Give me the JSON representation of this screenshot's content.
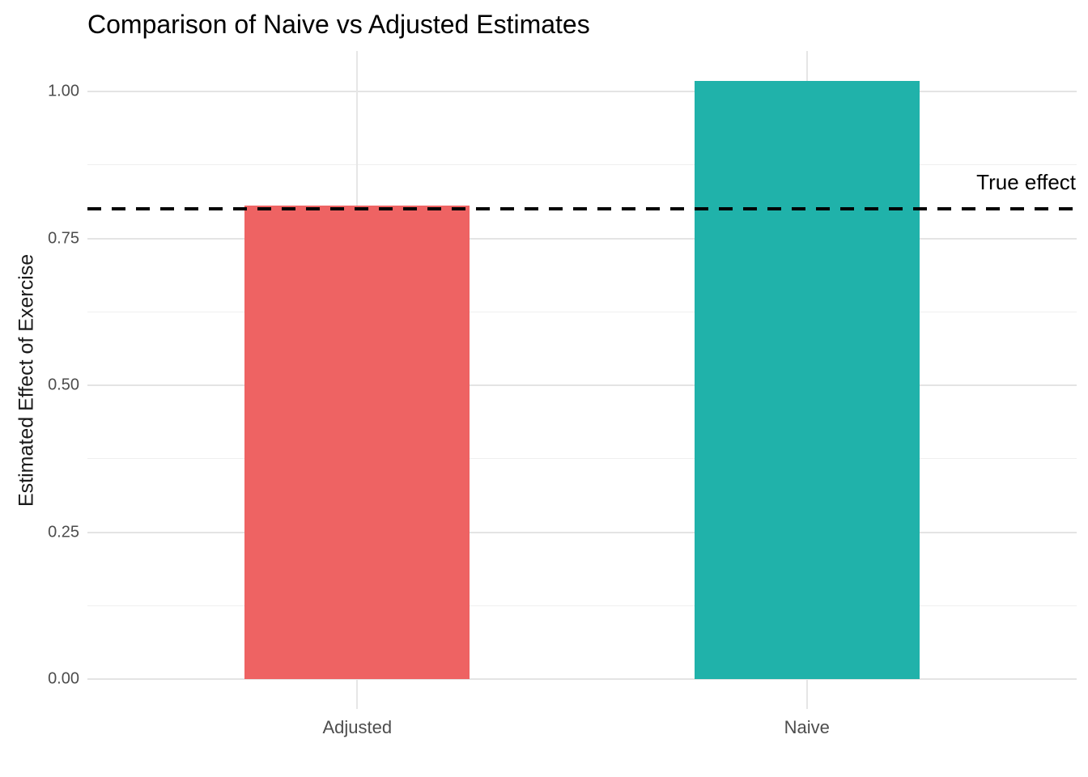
{
  "chart_data": {
    "type": "bar",
    "title": "Comparison of Naive vs Adjusted Estimates",
    "xlabel": "",
    "ylabel": "Estimated Effect of Exercise",
    "categories": [
      "Adjusted",
      "Naive"
    ],
    "values": [
      0.806,
      1.018
    ],
    "bar_colors": [
      "#EE6363",
      "#20B2AA"
    ],
    "ylim": [
      0,
      1.02
    ],
    "y_ticks": [
      {
        "value": 0.0,
        "label": "0.00"
      },
      {
        "value": 0.25,
        "label": "0.25"
      },
      {
        "value": 0.5,
        "label": "0.50"
      },
      {
        "value": 0.75,
        "label": "0.75"
      },
      {
        "value": 1.0,
        "label": "1.00"
      }
    ],
    "y_minor_ticks": [
      0.125,
      0.375,
      0.625,
      0.875
    ],
    "grid": "major-and-minor, vertical category gridlines, no axis lines (theme_minimal)",
    "legend": "none",
    "reference_line": {
      "value": 0.8,
      "label": "True effect",
      "style": "dashed",
      "color": "#000000"
    },
    "theme": {
      "background": "#FFFFFF",
      "major_grid_color": "#E4E4E4",
      "minor_grid_color": "#EFEFEF",
      "tick_label_color": "#4D4D4D",
      "axis_title_color": "#1A1A1A",
      "title_color": "#000000"
    }
  }
}
